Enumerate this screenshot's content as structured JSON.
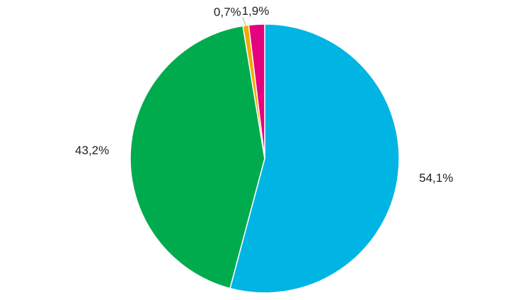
{
  "chart_data": {
    "type": "pie",
    "values": [
      54.1,
      43.2,
      0.7,
      1.9
    ],
    "value_labels": [
      "54,1%",
      "43,2%",
      "0,7%",
      "1,9%"
    ],
    "colors": [
      "#00b4e4",
      "#00ab4e",
      "#f5a800",
      "#e5007d"
    ]
  }
}
